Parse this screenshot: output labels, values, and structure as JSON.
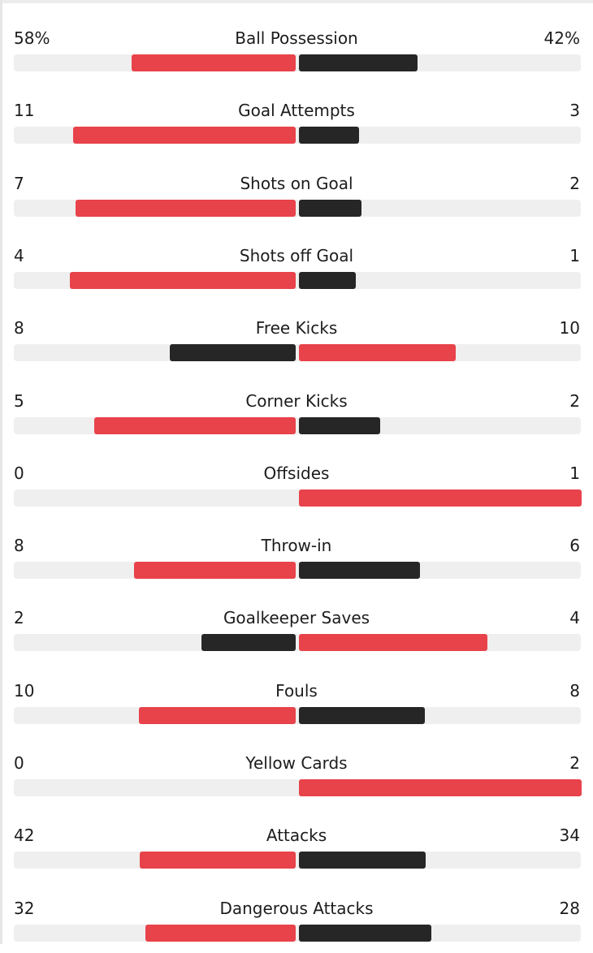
{
  "colors": {
    "leading": "#e8424a",
    "trailing": "#262626",
    "track": "#efefef",
    "text": "#1c1c1c"
  },
  "stats": [
    {
      "label": "Ball Possession",
      "home": "58%",
      "away": "42%",
      "home_share": 0.58,
      "away_share": 0.42
    },
    {
      "label": "Goal Attempts",
      "home": "11",
      "away": "3",
      "home_share": 0.786,
      "away_share": 0.214
    },
    {
      "label": "Shots on Goal",
      "home": "7",
      "away": "2",
      "home_share": 0.778,
      "away_share": 0.222
    },
    {
      "label": "Shots off Goal",
      "home": "4",
      "away": "1",
      "home_share": 0.8,
      "away_share": 0.2
    },
    {
      "label": "Free Kicks",
      "home": "8",
      "away": "10",
      "home_share": 0.444,
      "away_share": 0.556
    },
    {
      "label": "Corner Kicks",
      "home": "5",
      "away": "2",
      "home_share": 0.714,
      "away_share": 0.286
    },
    {
      "label": "Offsides",
      "home": "0",
      "away": "1",
      "home_share": 0.0,
      "away_share": 1.0
    },
    {
      "label": "Throw-in",
      "home": "8",
      "away": "6",
      "home_share": 0.571,
      "away_share": 0.429
    },
    {
      "label": "Goalkeeper Saves",
      "home": "2",
      "away": "4",
      "home_share": 0.333,
      "away_share": 0.667
    },
    {
      "label": "Fouls",
      "home": "10",
      "away": "8",
      "home_share": 0.556,
      "away_share": 0.444
    },
    {
      "label": "Yellow Cards",
      "home": "0",
      "away": "2",
      "home_share": 0.0,
      "away_share": 1.0
    },
    {
      "label": "Attacks",
      "home": "42",
      "away": "34",
      "home_share": 0.553,
      "away_share": 0.447
    },
    {
      "label": "Dangerous Attacks",
      "home": "32",
      "away": "28",
      "home_share": 0.533,
      "away_share": 0.467
    }
  ]
}
